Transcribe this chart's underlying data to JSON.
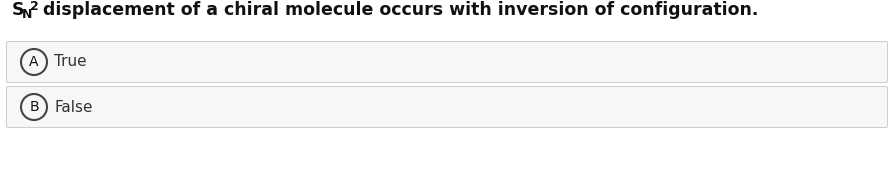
{
  "title_S": "S",
  "title_N": "N",
  "title_2": "2",
  "title_rest": " displacement of a chiral molecule occurs with inversion of configuration.",
  "options": [
    {
      "label": "A",
      "text": "True"
    },
    {
      "label": "B",
      "text": "False"
    }
  ],
  "bg_color": "#ffffff",
  "option_bg_color": "#f7f7f7",
  "option_border_color": "#cccccc",
  "circle_bg_color": "#f7f7f7",
  "circle_edge_color": "#444444",
  "text_color": "#111111",
  "option_text_color": "#333333",
  "title_fontsize": 12.5,
  "option_fontsize": 11,
  "circle_fontsize": 10,
  "fig_width": 8.94,
  "fig_height": 1.69,
  "dpi": 100
}
